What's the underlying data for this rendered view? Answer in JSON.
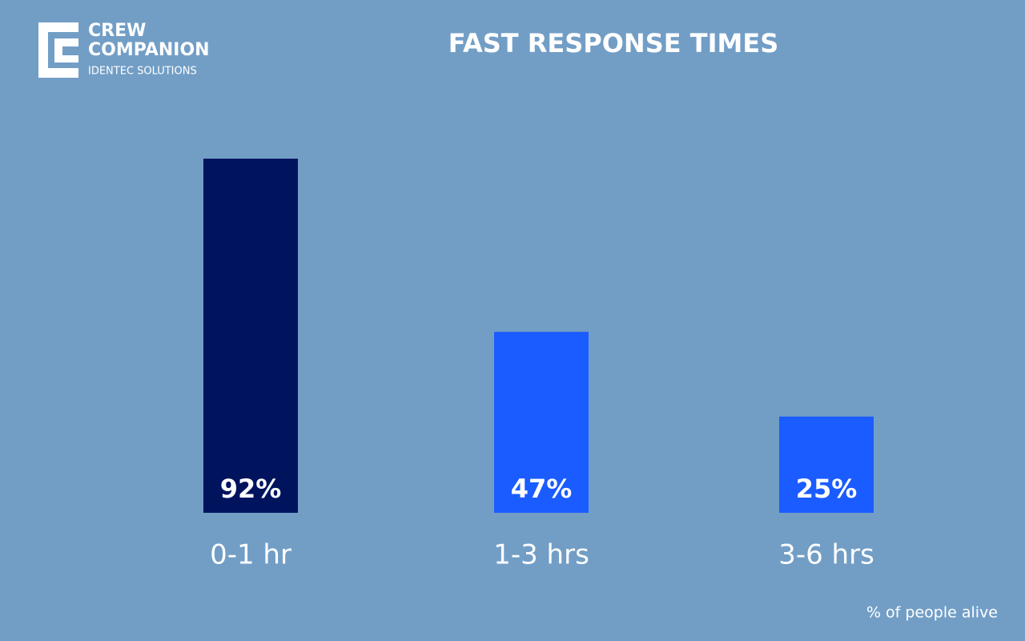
{
  "logo": {
    "line1": "CREW",
    "line2": "COMPANION",
    "tagline": "IDENTEC SOLUTIONS"
  },
  "chart_data": {
    "type": "bar",
    "title": "FAST RESPONSE TIMES",
    "categories": [
      "0-1 hr",
      "1-3 hrs",
      "3-6 hrs"
    ],
    "values": [
      92,
      47,
      25
    ],
    "value_labels": [
      "92%",
      "47%",
      "25%"
    ],
    "colors": [
      "#00145e",
      "#1a5cff",
      "#1a5cff"
    ],
    "note": "% of people alive"
  }
}
